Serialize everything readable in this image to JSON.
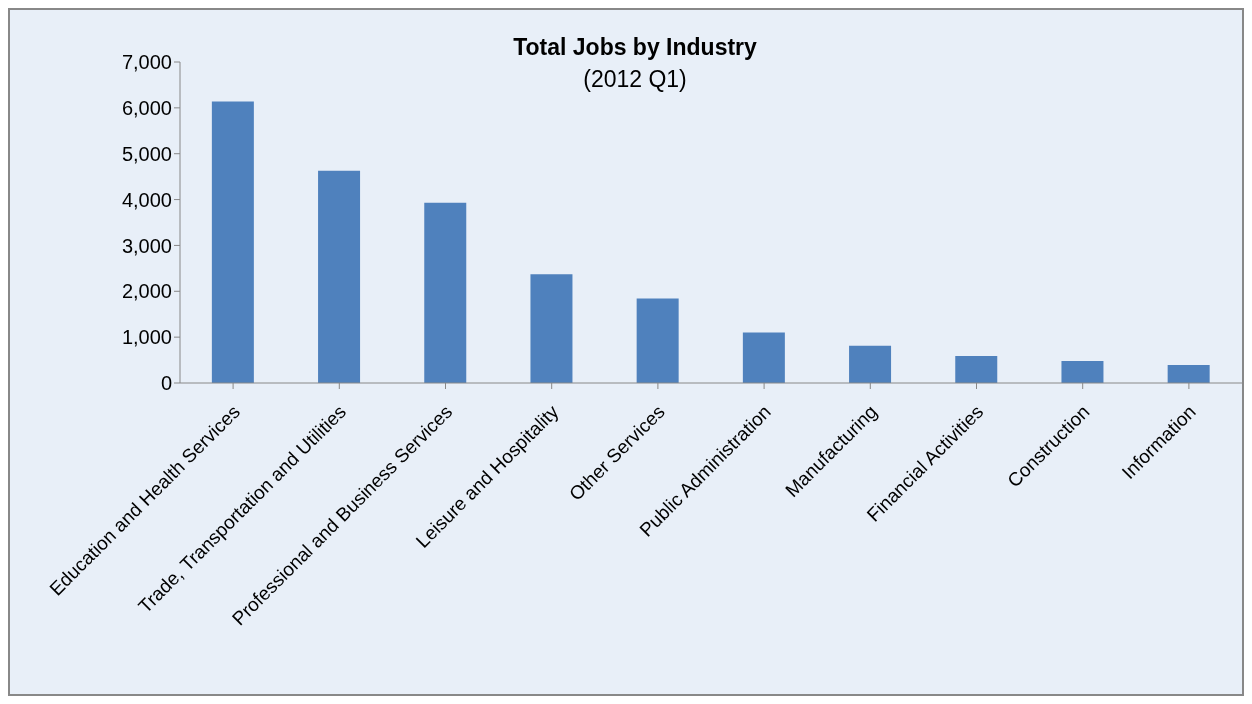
{
  "chart_data": {
    "type": "bar",
    "title": "Total Jobs by Industry",
    "subtitle": "(2012 Q1)",
    "categories": [
      "Education and Health Services",
      "Trade, Transportation and Utilities",
      "Professional and Business Services",
      "Leisure and Hospitality",
      "Other Services",
      "Public Administration",
      "Manufacturing",
      "Financial Activities",
      "Construction",
      "Information"
    ],
    "values": [
      6140,
      4630,
      3930,
      2370,
      1840,
      1100,
      810,
      590,
      480,
      390
    ],
    "color": "#4f81bd",
    "ylim": [
      0,
      7000
    ],
    "yticks": [
      {
        "value": 0,
        "label": "0"
      },
      {
        "value": 1000,
        "label": "1,000"
      },
      {
        "value": 2000,
        "label": "2,000"
      },
      {
        "value": 3000,
        "label": "3,000"
      },
      {
        "value": 4000,
        "label": "4,000"
      },
      {
        "value": 5000,
        "label": "5,000"
      },
      {
        "value": 6000,
        "label": "6,000"
      },
      {
        "value": 7000,
        "label": "7,000"
      }
    ],
    "grid": false,
    "legend": false
  }
}
